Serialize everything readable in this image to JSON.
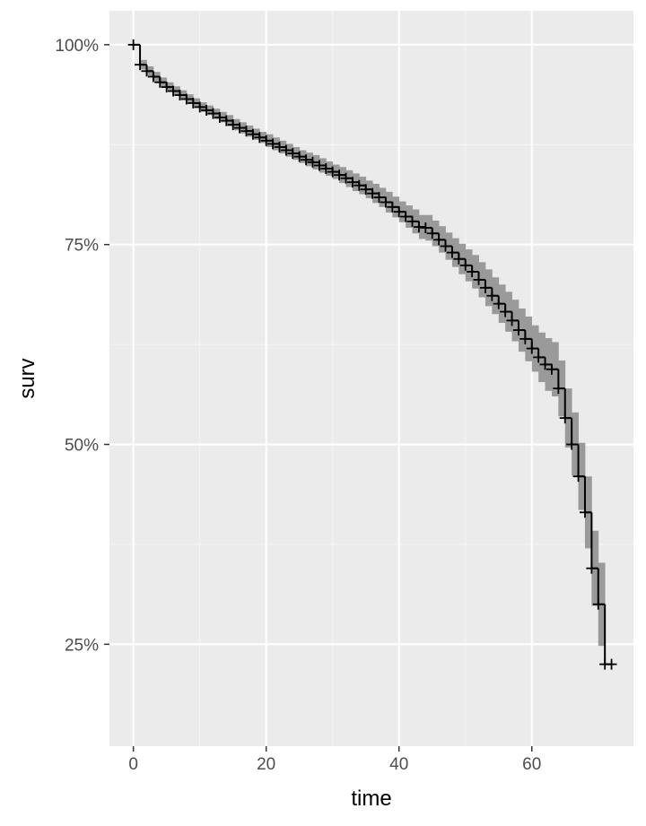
{
  "chart_data": {
    "type": "line",
    "subtype": "km-survival-step",
    "title": "",
    "xlabel": "time",
    "ylabel": "surv",
    "xlim": [
      -3.6,
      75.3
    ],
    "ylim": [
      0.1225,
      1.0425
    ],
    "x_ticks": [
      0,
      20,
      40,
      60
    ],
    "x_tick_labels": [
      "0",
      "20",
      "40",
      "60"
    ],
    "y_ticks": [
      0.25,
      0.5,
      0.75,
      1.0
    ],
    "y_tick_labels": [
      "25%",
      "50%",
      "75%",
      "100%"
    ],
    "grid": true,
    "legend": "none",
    "colors": {
      "panel_background": "#ebebeb",
      "grid_major": "#ffffff",
      "grid_minor": "#f5f5f5",
      "line": "#000000",
      "ribbon": "#9a9a9a",
      "tick_text": "#4d4d4d",
      "axis_title": "#000000"
    },
    "series": [
      {
        "time": [
          0,
          1,
          2,
          3,
          4,
          5,
          6,
          7,
          8,
          9,
          10,
          11,
          12,
          13,
          14,
          15,
          16,
          17,
          18,
          19,
          20,
          21,
          22,
          23,
          24,
          25,
          26,
          27,
          28,
          29,
          30,
          31,
          32,
          33,
          34,
          35,
          36,
          37,
          38,
          39,
          40,
          41,
          42,
          43,
          44,
          45,
          46,
          47,
          48,
          49,
          50,
          51,
          52,
          53,
          54,
          55,
          56,
          57,
          58,
          59,
          60,
          61,
          62,
          63,
          64,
          65,
          66,
          67,
          68,
          69,
          70,
          71,
          72
        ],
        "surv": [
          1.0,
          0.975,
          0.967,
          0.96,
          0.953,
          0.947,
          0.942,
          0.937,
          0.932,
          0.927,
          0.922,
          0.918,
          0.914,
          0.909,
          0.905,
          0.9,
          0.896,
          0.892,
          0.888,
          0.884,
          0.88,
          0.876,
          0.872,
          0.868,
          0.864,
          0.86,
          0.856,
          0.853,
          0.849,
          0.845,
          0.841,
          0.837,
          0.833,
          0.828,
          0.824,
          0.819,
          0.814,
          0.809,
          0.803,
          0.797,
          0.791,
          0.785,
          0.779,
          0.772,
          0.771,
          0.764,
          0.756,
          0.748,
          0.74,
          0.732,
          0.724,
          0.716,
          0.706,
          0.696,
          0.686,
          0.676,
          0.666,
          0.655,
          0.643,
          0.632,
          0.62,
          0.609,
          0.6,
          0.594,
          0.57,
          0.533,
          0.5,
          0.46,
          0.415,
          0.345,
          0.3,
          0.225,
          0.225
        ],
        "lower": [
          1.0,
          0.969,
          0.961,
          0.954,
          0.947,
          0.942,
          0.937,
          0.931,
          0.926,
          0.921,
          0.916,
          0.912,
          0.907,
          0.903,
          0.898,
          0.893,
          0.889,
          0.885,
          0.881,
          0.877,
          0.872,
          0.868,
          0.864,
          0.86,
          0.856,
          0.852,
          0.848,
          0.844,
          0.84,
          0.836,
          0.832,
          0.827,
          0.822,
          0.817,
          0.813,
          0.808,
          0.802,
          0.797,
          0.79,
          0.784,
          0.778,
          0.771,
          0.764,
          0.757,
          0.755,
          0.748,
          0.74,
          0.731,
          0.722,
          0.713,
          0.704,
          0.695,
          0.684,
          0.673,
          0.663,
          0.652,
          0.641,
          0.629,
          0.616,
          0.604,
          0.591,
          0.578,
          0.567,
          0.56,
          0.535,
          0.496,
          0.461,
          0.418,
          0.37,
          0.298,
          0.248,
          0.225,
          0.225
        ],
        "upper": [
          1.0,
          0.981,
          0.973,
          0.966,
          0.959,
          0.953,
          0.948,
          0.943,
          0.938,
          0.933,
          0.928,
          0.924,
          0.92,
          0.916,
          0.912,
          0.907,
          0.903,
          0.899,
          0.895,
          0.891,
          0.888,
          0.884,
          0.88,
          0.876,
          0.872,
          0.868,
          0.865,
          0.862,
          0.858,
          0.854,
          0.85,
          0.847,
          0.843,
          0.839,
          0.835,
          0.83,
          0.826,
          0.821,
          0.816,
          0.81,
          0.804,
          0.799,
          0.794,
          0.787,
          0.787,
          0.78,
          0.773,
          0.765,
          0.758,
          0.751,
          0.744,
          0.737,
          0.728,
          0.719,
          0.709,
          0.7,
          0.691,
          0.681,
          0.67,
          0.66,
          0.649,
          0.64,
          0.633,
          0.628,
          0.605,
          0.57,
          0.54,
          0.502,
          0.46,
          0.392,
          0.352,
          0.225,
          0.225
        ]
      }
    ]
  }
}
